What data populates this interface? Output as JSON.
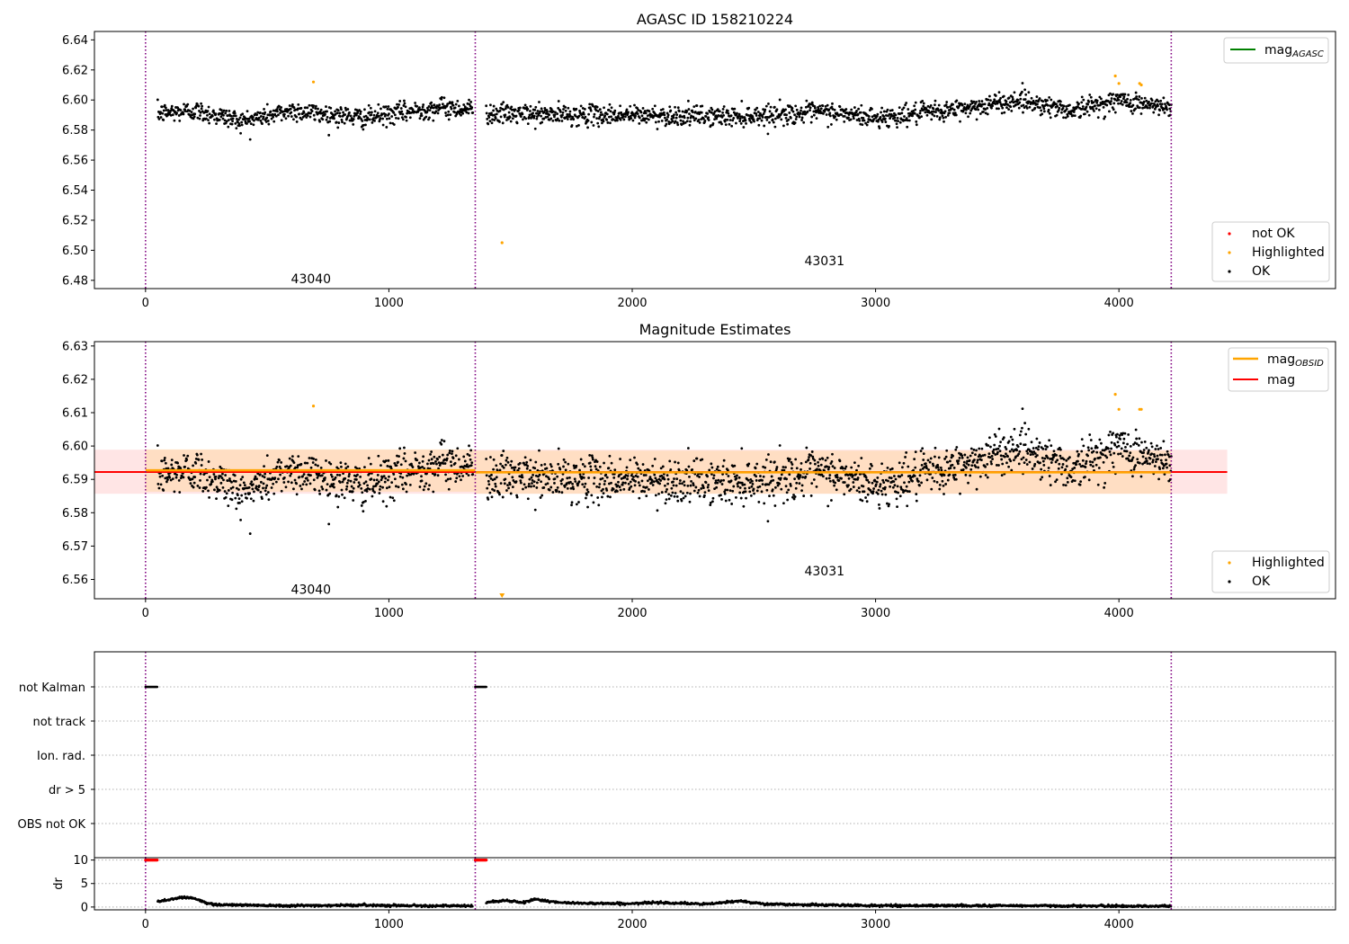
{
  "colors": {
    "ok": "#000000",
    "highlighted": "#ffa500",
    "not_ok": "#ff0000",
    "mag_agasc": "#008000",
    "mag_obsid": "#ffa500",
    "mag": "#ff0000",
    "boundary": "#800080",
    "band_mag": "#ff9999",
    "band_obsid": "#ffd8a8"
  },
  "chart_data": [
    {
      "type": "scatter",
      "title": "AGASC ID 158210224",
      "xlim": [
        -210,
        4890
      ],
      "ylim": [
        6.4745,
        6.6456
      ],
      "xticks": [
        0,
        1000,
        2000,
        3000,
        4000
      ],
      "yticks": [
        6.48,
        6.5,
        6.52,
        6.54,
        6.56,
        6.58,
        6.6,
        6.62,
        6.64
      ],
      "ytick_labels": [
        "6.48",
        "6.50",
        "6.52",
        "6.54",
        "6.56",
        "6.58",
        "6.60",
        "6.62",
        "6.64"
      ],
      "legend_upper": {
        "position": "upper right",
        "entries": [
          {
            "label": "mag",
            "subscript": "AGASC",
            "kind": "line"
          }
        ]
      },
      "legend_lower": {
        "position": "lower right",
        "entries": [
          {
            "label": "not OK",
            "kind": "dot"
          },
          {
            "label": "Highlighted",
            "kind": "dot"
          },
          {
            "label": "OK",
            "kind": "dot"
          }
        ]
      },
      "obsid_labels": [
        {
          "text": "43040",
          "x": 680,
          "y": 6.481
        },
        {
          "text": "43031",
          "x": 2790,
          "y": 6.493
        }
      ],
      "obsid_boundaries": [
        0,
        1355,
        4215
      ],
      "highlighted_points": [
        {
          "x": 690,
          "y": 6.612
        },
        {
          "x": 1465,
          "y": 6.505
        },
        {
          "x": 3985,
          "y": 6.616
        },
        {
          "x": 4000,
          "y": 6.611
        },
        {
          "x": 4085,
          "y": 6.611
        },
        {
          "x": 4092,
          "y": 6.61
        }
      ],
      "series_ok": {
        "segments": [
          [
            50,
            1345
          ],
          [
            1400,
            4215
          ]
        ],
        "n_points": 2100,
        "trend": [
          [
            50,
            6.591
          ],
          [
            200,
            6.593
          ],
          [
            400,
            6.586
          ],
          [
            600,
            6.593
          ],
          [
            900,
            6.588
          ],
          [
            1200,
            6.595
          ],
          [
            1345,
            6.594
          ],
          [
            1400,
            6.591
          ],
          [
            1700,
            6.59
          ],
          [
            2000,
            6.59
          ],
          [
            2400,
            6.589
          ],
          [
            2800,
            6.592
          ],
          [
            3000,
            6.588
          ],
          [
            3300,
            6.593
          ],
          [
            3600,
            6.6
          ],
          [
            3800,
            6.593
          ],
          [
            4000,
            6.6
          ],
          [
            4215,
            6.594
          ]
        ],
        "scatter": 0.006
      }
    },
    {
      "type": "scatter",
      "title": "Magnitude Estimates",
      "xlim": [
        -210,
        4890
      ],
      "ylim": [
        6.5542,
        6.6313
      ],
      "xticks": [
        0,
        1000,
        2000,
        3000,
        4000
      ],
      "yticks": [
        6.56,
        6.57,
        6.58,
        6.59,
        6.6,
        6.61,
        6.62,
        6.63
      ],
      "ytick_labels": [
        "6.56",
        "6.57",
        "6.58",
        "6.59",
        "6.60",
        "6.61",
        "6.62",
        "6.63"
      ],
      "legend_upper": {
        "position": "upper right",
        "entries": [
          {
            "label": "mag",
            "subscript": "OBSID",
            "kind": "line"
          },
          {
            "label": "mag",
            "kind": "line"
          }
        ]
      },
      "legend_lower": {
        "position": "lower right",
        "entries": [
          {
            "label": "Highlighted",
            "kind": "dot"
          },
          {
            "label": "OK",
            "kind": "dot"
          }
        ]
      },
      "obsid_labels": [
        {
          "text": "43040",
          "x": 680,
          "y": 6.557
        },
        {
          "text": "43031",
          "x": 2790,
          "y": 6.5625
        }
      ],
      "obsid_boundaries": [
        0,
        1355,
        4215
      ],
      "mag": {
        "value": 6.5922,
        "range": [
          -210,
          4445
        ],
        "band": [
          6.5857,
          6.5989
        ]
      },
      "mag_obsid": [
        {
          "range": [
            0,
            1355
          ],
          "value": 6.5927,
          "band": [
            6.5863,
            6.599
          ]
        },
        {
          "range": [
            1355,
            4215
          ],
          "value": 6.5921,
          "band": [
            6.5857,
            6.5986
          ]
        }
      ],
      "highlighted_points": [
        {
          "x": 690,
          "y": 6.612
        },
        {
          "x": 3985,
          "y": 6.6155
        },
        {
          "x": 4000,
          "y": 6.611
        },
        {
          "x": 4085,
          "y": 6.611
        },
        {
          "x": 4092,
          "y": 6.611
        }
      ],
      "highlighted_out_of_range": [
        {
          "x": 1465,
          "y": 6.505
        }
      ]
    },
    {
      "type": "scatter",
      "title": "",
      "xlim": [
        -210,
        4890
      ],
      "categories": [
        "not Kalman",
        "not track",
        "Ion. rad.",
        "dr > 5",
        "OBS not OK"
      ],
      "flags": [
        {
          "category": "not Kalman",
          "segments": [
            [
              0,
              50
            ],
            [
              1355,
              1400
            ]
          ]
        }
      ],
      "obsid_boundaries": [
        0,
        1355,
        4215
      ]
    },
    {
      "type": "line",
      "title": "",
      "ylabel": "dr",
      "xlim": [
        -210,
        4890
      ],
      "ylim": [
        -0.6,
        10.5
      ],
      "yticks": [
        0,
        5,
        10
      ],
      "ytick_labels": [
        "0",
        "5",
        "10"
      ],
      "xticks": [
        0,
        1000,
        2000,
        3000,
        4000
      ],
      "obsid_boundaries": [
        0,
        1355,
        4215
      ],
      "not_ok_segments": [
        [
          0,
          50
        ],
        [
          1355,
          1400
        ]
      ],
      "not_ok_value": 10,
      "dr_trend": [
        [
          50,
          1.2
        ],
        [
          100,
          1.6
        ],
        [
          150,
          2.1
        ],
        [
          200,
          1.9
        ],
        [
          250,
          0.8
        ],
        [
          300,
          0.5
        ],
        [
          600,
          0.3
        ],
        [
          900,
          0.4
        ],
        [
          1345,
          0.2
        ],
        [
          1400,
          1.0
        ],
        [
          1480,
          1.4
        ],
        [
          1550,
          0.9
        ],
        [
          1600,
          1.7
        ],
        [
          1700,
          0.9
        ],
        [
          2000,
          0.7
        ],
        [
          2100,
          1.0
        ],
        [
          2300,
          0.6
        ],
        [
          2450,
          1.3
        ],
        [
          2550,
          0.6
        ],
        [
          3000,
          0.3
        ],
        [
          3500,
          0.3
        ],
        [
          4000,
          0.2
        ],
        [
          4215,
          0.2
        ]
      ]
    }
  ]
}
